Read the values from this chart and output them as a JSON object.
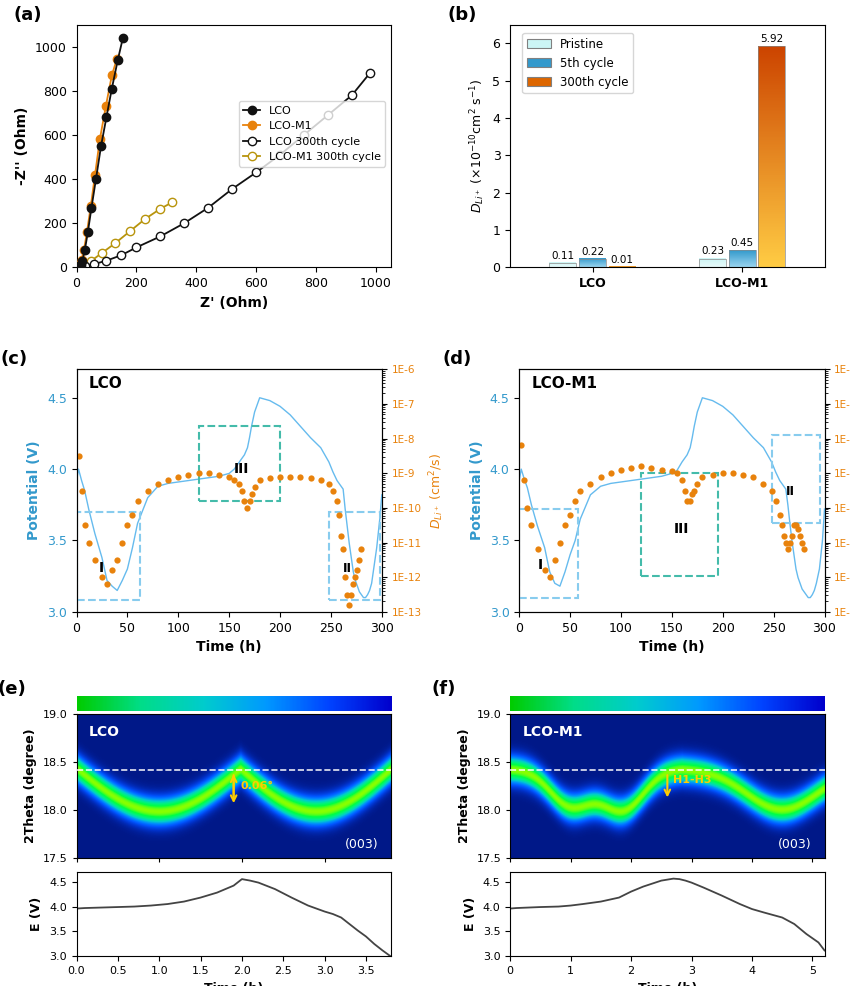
{
  "panel_a": {
    "lco_pristine_x": [
      5,
      10,
      15,
      20,
      28,
      38,
      50,
      65,
      82,
      100,
      118,
      138,
      155
    ],
    "lco_pristine_y": [
      2,
      5,
      12,
      30,
      80,
      160,
      270,
      400,
      550,
      680,
      810,
      940,
      1040
    ],
    "lco_m1_pristine_x": [
      5,
      8,
      12,
      18,
      25,
      35,
      48,
      62,
      78,
      98,
      118,
      135
    ],
    "lco_m1_pristine_y": [
      2,
      5,
      15,
      35,
      80,
      160,
      280,
      420,
      580,
      730,
      870,
      945
    ],
    "lco_300_x": [
      10,
      30,
      60,
      100,
      150,
      200,
      280,
      360,
      440,
      520,
      600,
      680,
      760,
      840,
      920,
      980
    ],
    "lco_300_y": [
      2,
      5,
      15,
      30,
      55,
      90,
      140,
      200,
      270,
      355,
      430,
      510,
      600,
      690,
      780,
      880
    ],
    "lco_m1_300_x": [
      10,
      25,
      50,
      85,
      130,
      180,
      230,
      280,
      320
    ],
    "lco_m1_300_y": [
      2,
      10,
      30,
      65,
      110,
      165,
      220,
      265,
      295
    ],
    "xlim": [
      0,
      1050
    ],
    "ylim": [
      0,
      1100
    ],
    "xlabel": "Z' (Ohm)",
    "ylabel": "-Z'' (Ohm)"
  },
  "panel_b": {
    "categories": [
      "LCO",
      "LCO-M1"
    ],
    "pristine": [
      0.11,
      0.23
    ],
    "fifth": [
      0.22,
      0.45
    ],
    "cycle300": [
      0.01,
      5.92
    ],
    "ylim": [
      0,
      6.5
    ],
    "pristine_color_top": "#ccf5f5",
    "pristine_color_bot": "#e8fafa",
    "fifth_color_top": "#3399cc",
    "fifth_color_bot": "#99d4ee",
    "cycle300_color_top": "#cc4400",
    "cycle300_color_bot": "#ffcc44"
  },
  "panel_c": {
    "title": "LCO",
    "time_potential": [
      0,
      2,
      5,
      8,
      12,
      18,
      25,
      30,
      35,
      40,
      45,
      50,
      55,
      60,
      70,
      80,
      90,
      100,
      110,
      120,
      130,
      140,
      150,
      155,
      160,
      165,
      168,
      170,
      172,
      175,
      180,
      190,
      200,
      210,
      220,
      230,
      240,
      248,
      252,
      256,
      258,
      260,
      262,
      264,
      266,
      268,
      270,
      272,
      274,
      276,
      278,
      280,
      282,
      284,
      286,
      288,
      290,
      292,
      295,
      298,
      300
    ],
    "potential": [
      3.92,
      4.0,
      3.92,
      3.85,
      3.72,
      3.55,
      3.38,
      3.22,
      3.18,
      3.15,
      3.22,
      3.3,
      3.45,
      3.62,
      3.8,
      3.88,
      3.9,
      3.91,
      3.92,
      3.93,
      3.94,
      3.95,
      3.97,
      4.0,
      4.05,
      4.1,
      4.15,
      4.22,
      4.3,
      4.4,
      4.5,
      4.48,
      4.44,
      4.38,
      4.3,
      4.22,
      4.15,
      4.05,
      3.98,
      3.92,
      3.9,
      3.88,
      3.86,
      3.72,
      3.6,
      3.48,
      3.38,
      3.28,
      3.22,
      3.18,
      3.14,
      3.12,
      3.1,
      3.1,
      3.12,
      3.15,
      3.2,
      3.3,
      3.45,
      3.65,
      3.82
    ],
    "time_diff": [
      2,
      5,
      8,
      12,
      18,
      25,
      30,
      35,
      40,
      45,
      50,
      55,
      60,
      70,
      80,
      90,
      100,
      110,
      120,
      130,
      140,
      150,
      155,
      160,
      163,
      165,
      168,
      170,
      172,
      175,
      180,
      190,
      200,
      210,
      220,
      230,
      240,
      248,
      252,
      256,
      258,
      260,
      262,
      264,
      266,
      268,
      270,
      272,
      274,
      276,
      278,
      280
    ],
    "diffusion": [
      -8.5,
      -9.5,
      -10.5,
      -11.0,
      -11.5,
      -12.0,
      -12.2,
      -11.8,
      -11.5,
      -11.0,
      -10.5,
      -10.2,
      -9.8,
      -9.5,
      -9.3,
      -9.2,
      -9.1,
      -9.05,
      -9.0,
      -9.0,
      -9.05,
      -9.1,
      -9.2,
      -9.3,
      -9.5,
      -9.8,
      -10.0,
      -9.8,
      -9.6,
      -9.4,
      -9.2,
      -9.15,
      -9.1,
      -9.1,
      -9.1,
      -9.15,
      -9.2,
      -9.3,
      -9.5,
      -9.8,
      -10.2,
      -10.8,
      -11.2,
      -12.0,
      -12.5,
      -12.8,
      -12.5,
      -12.2,
      -12.0,
      -11.8,
      -11.5,
      -11.2
    ],
    "xlim": [
      0,
      300
    ],
    "ylim_left": [
      3.0,
      4.7
    ],
    "xlabel": "Time (h)",
    "ylabel_left": "Potential (V)"
  },
  "panel_d": {
    "title": "LCO-M1",
    "time_potential": [
      0,
      2,
      5,
      8,
      12,
      18,
      25,
      30,
      35,
      40,
      45,
      50,
      55,
      60,
      70,
      80,
      90,
      100,
      110,
      120,
      130,
      140,
      150,
      155,
      160,
      165,
      168,
      170,
      172,
      175,
      180,
      190,
      200,
      210,
      220,
      230,
      240,
      248,
      252,
      256,
      258,
      260,
      262,
      264,
      266,
      268,
      270,
      272,
      274,
      276,
      278,
      280,
      282,
      284,
      286,
      288,
      290,
      292,
      295,
      298,
      300
    ],
    "potential": [
      3.92,
      4.0,
      3.93,
      3.87,
      3.75,
      3.6,
      3.45,
      3.28,
      3.2,
      3.18,
      3.28,
      3.4,
      3.5,
      3.65,
      3.82,
      3.88,
      3.9,
      3.91,
      3.92,
      3.93,
      3.94,
      3.95,
      3.97,
      3.99,
      4.05,
      4.1,
      4.15,
      4.22,
      4.3,
      4.4,
      4.5,
      4.48,
      4.44,
      4.38,
      4.3,
      4.22,
      4.15,
      4.05,
      3.98,
      3.92,
      3.9,
      3.88,
      3.86,
      3.75,
      3.62,
      3.5,
      3.4,
      3.3,
      3.24,
      3.2,
      3.16,
      3.14,
      3.12,
      3.1,
      3.1,
      3.12,
      3.15,
      3.2,
      3.3,
      3.5,
      3.72
    ],
    "time_diff": [
      2,
      5,
      8,
      12,
      18,
      25,
      30,
      35,
      40,
      45,
      50,
      55,
      60,
      70,
      80,
      90,
      100,
      110,
      120,
      130,
      140,
      150,
      155,
      160,
      163,
      165,
      168,
      170,
      172,
      175,
      180,
      190,
      200,
      210,
      220,
      230,
      240,
      248,
      252,
      256,
      258,
      260,
      262,
      264,
      266,
      268,
      270,
      272,
      274,
      276,
      278,
      280
    ],
    "diffusion": [
      -8.2,
      -9.2,
      -10.0,
      -10.5,
      -11.2,
      -11.8,
      -12.0,
      -11.5,
      -11.0,
      -10.5,
      -10.2,
      -9.8,
      -9.5,
      -9.3,
      -9.1,
      -9.0,
      -8.9,
      -8.85,
      -8.8,
      -8.85,
      -8.9,
      -8.95,
      -9.0,
      -9.2,
      -9.5,
      -9.8,
      -9.8,
      -9.6,
      -9.5,
      -9.3,
      -9.1,
      -9.05,
      -9.0,
      -9.0,
      -9.05,
      -9.1,
      -9.3,
      -9.5,
      -9.8,
      -10.2,
      -10.5,
      -10.8,
      -11.0,
      -11.2,
      -11.0,
      -10.8,
      -10.5,
      -10.5,
      -10.6,
      -10.8,
      -11.0,
      -11.2
    ],
    "xlim": [
      0,
      300
    ],
    "ylim_left": [
      3.0,
      4.7
    ],
    "xlabel": "Time (h)",
    "ylabel_left": "Potential (V)"
  },
  "panel_e": {
    "title": "LCO",
    "theta_range": [
      17.5,
      19.0
    ],
    "time_range": [
      0,
      3.8
    ],
    "dashed_line_y": 18.42,
    "peak_start": 18.42,
    "peak_min": 17.98,
    "label": "(003)"
  },
  "panel_f": {
    "title": "LCO-M1",
    "theta_range": [
      17.5,
      19.0
    ],
    "time_range": [
      0,
      5.2
    ],
    "dashed_line_y": 18.42,
    "peak_start": 18.42,
    "peak_min": 17.95,
    "label": "(003)",
    "annotation": "H1-H3"
  },
  "panel_eg": {
    "time": [
      0,
      0.1,
      0.3,
      0.5,
      0.7,
      0.9,
      1.1,
      1.3,
      1.5,
      1.7,
      1.9,
      2.0,
      2.1,
      2.2,
      2.4,
      2.6,
      2.8,
      3.0,
      3.1,
      3.2,
      3.3,
      3.4,
      3.5,
      3.6,
      3.7,
      3.8
    ],
    "voltage": [
      3.96,
      3.97,
      3.98,
      3.99,
      4.0,
      4.02,
      4.05,
      4.1,
      4.18,
      4.28,
      4.42,
      4.55,
      4.52,
      4.48,
      4.35,
      4.18,
      4.02,
      3.9,
      3.85,
      3.78,
      3.65,
      3.52,
      3.4,
      3.25,
      3.12,
      3.0
    ],
    "xlim": [
      0,
      3.8
    ],
    "ylim": [
      3.0,
      4.7
    ],
    "xlabel": "Time (h)",
    "ylabel": "E (V)"
  },
  "panel_fh": {
    "time": [
      0,
      0.1,
      0.3,
      0.5,
      0.8,
      1.0,
      1.2,
      1.5,
      1.8,
      2.0,
      2.2,
      2.5,
      2.7,
      2.8,
      2.9,
      3.0,
      3.2,
      3.5,
      3.8,
      4.0,
      4.2,
      4.5,
      4.7,
      4.9,
      5.1,
      5.2
    ],
    "voltage": [
      3.96,
      3.97,
      3.98,
      3.99,
      4.0,
      4.02,
      4.05,
      4.1,
      4.18,
      4.3,
      4.4,
      4.52,
      4.56,
      4.55,
      4.52,
      4.48,
      4.38,
      4.22,
      4.05,
      3.95,
      3.88,
      3.78,
      3.65,
      3.45,
      3.28,
      3.12
    ],
    "xlim": [
      0,
      5.2
    ],
    "ylim": [
      3.0,
      4.7
    ],
    "xlabel": "Time (h)",
    "ylabel": "E (V)"
  },
  "colorbar_colors": [
    "#00aa00",
    "#00dd88",
    "#00cccc",
    "#0088ff",
    "#0044dd",
    "#0000aa"
  ],
  "xrd_bg_color": "#0033cc",
  "xrd_peak_color": "#00ff88"
}
